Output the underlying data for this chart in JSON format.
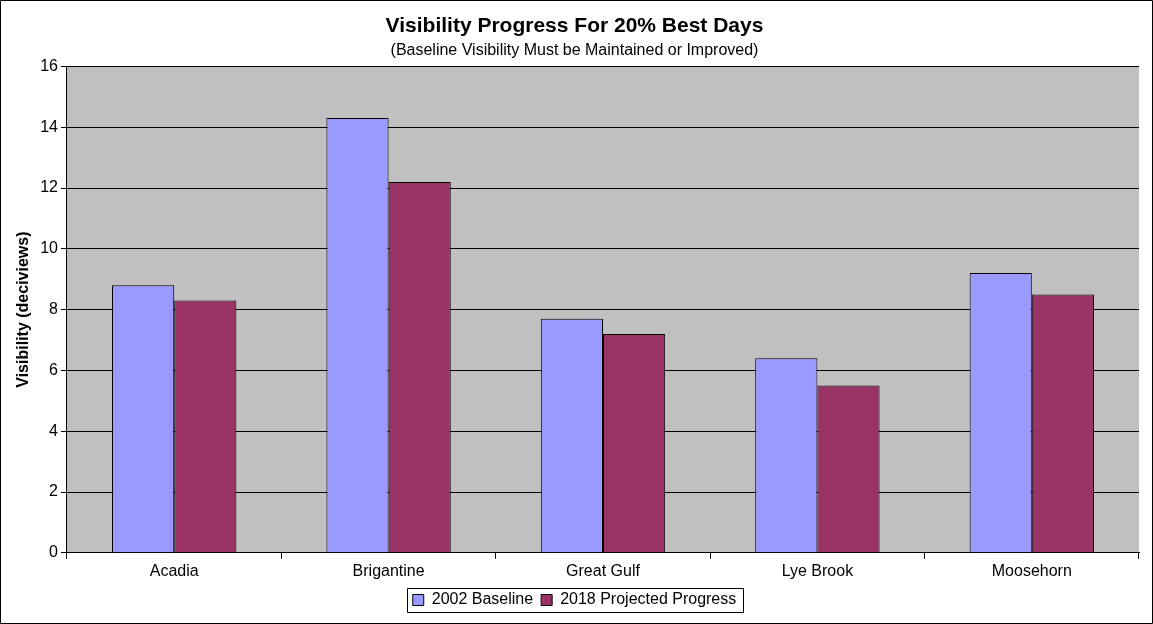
{
  "chart_data": {
    "type": "bar",
    "title": "Visibility Progress For 20% Best Days",
    "subtitle": "(Baseline Visibility Must be Maintained or Improved)",
    "ylabel": "Visibility (deciviews)",
    "categories": [
      "Acadia",
      "Brigantine",
      "Great Gulf",
      "Lye Brook",
      "Moosehorn"
    ],
    "series": [
      {
        "name": "2002 Baseline",
        "color": "#9999ff",
        "values": [
          8.8,
          14.3,
          7.7,
          6.4,
          9.2
        ]
      },
      {
        "name": "2018 Projected Progress",
        "color": "#993366",
        "values": [
          8.3,
          12.2,
          7.2,
          5.5,
          8.5
        ]
      }
    ],
    "ylim": [
      0,
      16
    ],
    "yticks": [
      0,
      2,
      4,
      6,
      8,
      10,
      12,
      14,
      16
    ],
    "grid": "y",
    "legend": "bottom"
  }
}
